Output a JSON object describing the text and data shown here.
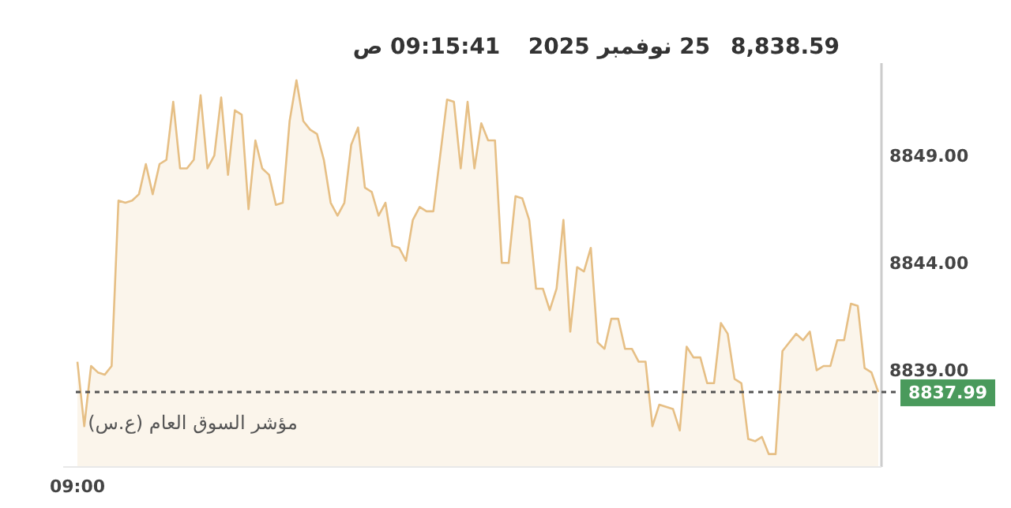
{
  "chart_data": {
    "type": "area",
    "annotations": [
      "8,838.59",
      "25 نوفمبر 2025",
      "09:15:41 ص",
      "مؤشر السوق العام (ع.س)"
    ],
    "categories": [
      "09:00",
      null,
      null,
      null,
      null,
      null,
      null,
      null,
      null,
      null,
      null,
      null,
      null,
      null,
      null,
      null,
      null,
      null,
      null,
      null,
      null,
      null,
      null,
      null,
      null,
      null,
      null,
      null,
      null,
      null,
      null,
      null,
      null,
      null,
      null,
      null,
      null,
      null,
      null,
      null,
      null,
      null,
      null,
      null,
      null,
      null,
      null,
      null,
      null,
      null,
      null,
      null,
      null,
      null,
      null,
      null,
      null,
      null,
      null,
      null,
      null,
      null,
      null,
      null,
      null,
      null,
      null,
      null,
      null,
      null,
      null,
      null,
      null,
      null,
      null,
      null,
      null,
      null,
      null,
      null,
      null,
      null,
      null,
      null,
      null,
      null,
      null,
      null,
      null,
      null,
      null,
      null,
      null,
      null,
      null,
      null,
      null,
      null,
      null,
      null,
      null,
      null,
      null,
      null,
      null,
      null,
      null,
      null,
      null,
      null,
      null,
      null,
      null,
      null,
      null,
      null,
      null,
      null
    ],
    "series": [
      {
        "color": "#e6bf85",
        "values": [
          8839.4,
          8836.4,
          8839.2,
          8838.9,
          8838.8,
          8839.2,
          8846.9,
          8846.8,
          8846.9,
          8847.2,
          8848.6,
          8847.2,
          8848.6,
          8848.8,
          8851.5,
          8848.4,
          8848.4,
          8848.8,
          8851.8,
          8848.4,
          8849.0,
          8851.7,
          8848.1,
          8851.1,
          8850.9,
          8846.5,
          8849.7,
          8848.4,
          8848.1,
          8846.7,
          8846.8,
          8850.6,
          8852.5,
          8850.6,
          8850.2,
          8850.0,
          8848.8,
          8846.8,
          8846.2,
          8846.8,
          8849.5,
          8850.3,
          8847.5,
          8847.3,
          8846.2,
          8846.8,
          8844.8,
          8844.7,
          8844.1,
          8846.0,
          8846.6,
          8846.4,
          8846.4,
          8849.0,
          8851.6,
          8851.5,
          8848.4,
          8851.5,
          8848.4,
          8850.5,
          8849.7,
          8849.7,
          8844.0,
          8844.0,
          8847.1,
          8847.0,
          8846.0,
          8842.8,
          8842.8,
          8841.8,
          8842.8,
          8846.0,
          8840.8,
          8843.8,
          8843.6,
          8844.7,
          8840.3,
          8840.0,
          8841.4,
          8841.4,
          8840.0,
          8840.0,
          8839.4,
          8839.4,
          8836.4,
          8837.4,
          8837.3,
          8837.2,
          8836.2,
          8840.1,
          8839.6,
          8839.6,
          8838.4,
          8838.4,
          8841.2,
          8840.7,
          8838.6,
          8838.4,
          8835.8,
          8835.7,
          8835.9,
          8835.1,
          8835.1,
          8839.9,
          8840.3,
          8840.7,
          8840.4,
          8840.8,
          8839.0,
          8839.2,
          8839.2,
          8840.4,
          8840.4,
          8842.1,
          8842.0,
          8839.1,
          8838.9,
          8837.99
        ]
      }
    ],
    "ylim": [
      8834.5,
      8853.3
    ],
    "yticks": [
      {
        "value": 8839,
        "label": "8839.00"
      },
      {
        "value": 8844,
        "label": "8844.00"
      },
      {
        "value": 8849,
        "label": "8849.00"
      }
    ],
    "ref_lines": [
      {
        "axis": "y",
        "value": 8837.99,
        "label": "8837.99",
        "color": "#555555",
        "line_style": "dotted"
      }
    ],
    "grid": false,
    "marker": "none",
    "line_style": "solid"
  }
}
